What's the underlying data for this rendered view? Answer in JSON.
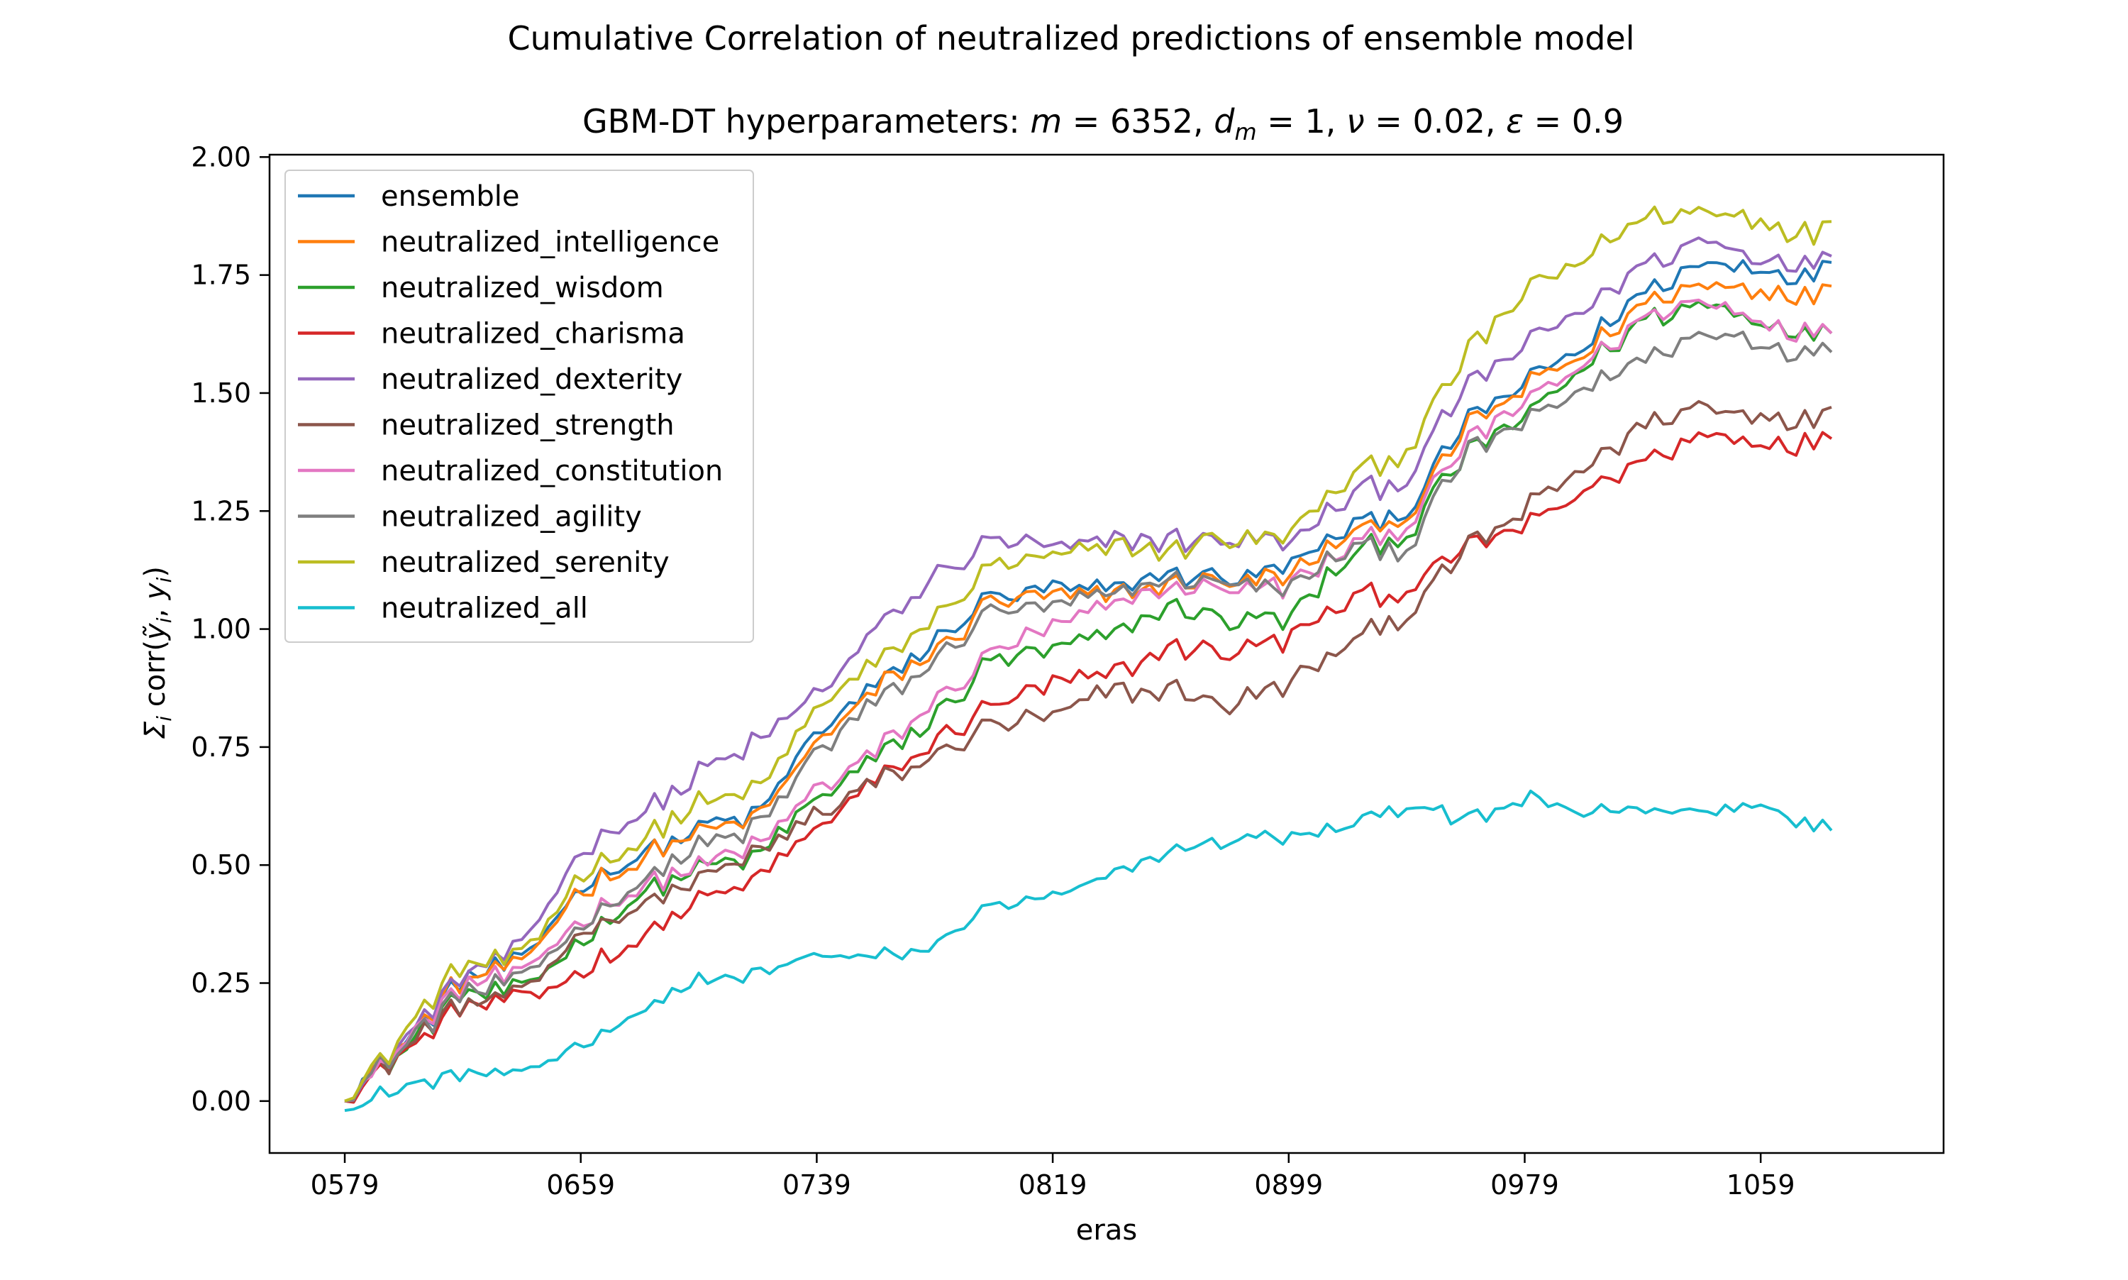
{
  "figure": {
    "suptitle": "Cumulative Correlation of neutralized predictions of ensemble model"
  },
  "chart_data": {
    "type": "line",
    "title_parts": {
      "prefix": "GBM-DT hyperparameters: ",
      "m_symbol": "m",
      "m_value": " = 6352, ",
      "dm_symbol": "d",
      "dm_sub": "m",
      "dm_value": " = 1, ",
      "nu_symbol": "ν",
      "nu_value": " = 0.02, ",
      "eps_symbol": "ε",
      "eps_value": " = 0.9"
    },
    "xlabel": "eras",
    "ylabel_parts": {
      "sigma": "Σ",
      "sigma_sub": "i",
      "corr": " corr(",
      "yhat": "ỹ",
      "yhat_sub": "i",
      "comma": ", ",
      "y": "y",
      "y_sub": "i",
      "close": ")"
    },
    "x_range": [
      579,
      1085
    ],
    "xlim": [
      553.5,
      1121
    ],
    "ylim": [
      -0.11,
      2.005
    ],
    "x_ticks": [
      {
        "value": 579,
        "label": "0579"
      },
      {
        "value": 659,
        "label": "0659"
      },
      {
        "value": 739,
        "label": "0739"
      },
      {
        "value": 819,
        "label": "0819"
      },
      {
        "value": 899,
        "label": "0899"
      },
      {
        "value": 979,
        "label": "0979"
      },
      {
        "value": 1059,
        "label": "1059"
      }
    ],
    "y_ticks": [
      {
        "value": 0.0,
        "label": "0.00"
      },
      {
        "value": 0.25,
        "label": "0.25"
      },
      {
        "value": 0.5,
        "label": "0.50"
      },
      {
        "value": 0.75,
        "label": "0.75"
      },
      {
        "value": 1.0,
        "label": "1.00"
      },
      {
        "value": 1.25,
        "label": "1.25"
      },
      {
        "value": 1.5,
        "label": "1.50"
      },
      {
        "value": 1.75,
        "label": "1.75"
      },
      {
        "value": 2.0,
        "label": "2.00"
      }
    ],
    "grid": false,
    "legend_position": "upper-left",
    "series": [
      {
        "name": "ensemble",
        "color": "#1f77b4",
        "points": [
          [
            579,
            0.0
          ],
          [
            599,
            0.12
          ],
          [
            619,
            0.26
          ],
          [
            639,
            0.29
          ],
          [
            659,
            0.46
          ],
          [
            679,
            0.52
          ],
          [
            699,
            0.58
          ],
          [
            719,
            0.61
          ],
          [
            739,
            0.78
          ],
          [
            759,
            0.88
          ],
          [
            779,
            0.97
          ],
          [
            799,
            1.07
          ],
          [
            819,
            1.08
          ],
          [
            839,
            1.08
          ],
          [
            859,
            1.12
          ],
          [
            879,
            1.11
          ],
          [
            899,
            1.13
          ],
          [
            919,
            1.22
          ],
          [
            939,
            1.25
          ],
          [
            959,
            1.44
          ],
          [
            979,
            1.52
          ],
          [
            999,
            1.6
          ],
          [
            1019,
            1.72
          ],
          [
            1039,
            1.77
          ],
          [
            1059,
            1.77
          ],
          [
            1079,
            1.75
          ],
          [
            1085,
            1.79
          ]
        ]
      },
      {
        "name": "neutralized_intelligence",
        "color": "#ff7f0e",
        "points": [
          [
            579,
            0.0
          ],
          [
            599,
            0.12
          ],
          [
            619,
            0.26
          ],
          [
            639,
            0.28
          ],
          [
            659,
            0.45
          ],
          [
            679,
            0.51
          ],
          [
            699,
            0.57
          ],
          [
            719,
            0.6
          ],
          [
            739,
            0.76
          ],
          [
            759,
            0.87
          ],
          [
            779,
            0.95
          ],
          [
            799,
            1.06
          ],
          [
            819,
            1.07
          ],
          [
            839,
            1.07
          ],
          [
            859,
            1.1
          ],
          [
            879,
            1.1
          ],
          [
            899,
            1.11
          ],
          [
            919,
            1.2
          ],
          [
            939,
            1.24
          ],
          [
            959,
            1.43
          ],
          [
            979,
            1.51
          ],
          [
            999,
            1.58
          ],
          [
            1019,
            1.69
          ],
          [
            1039,
            1.73
          ],
          [
            1059,
            1.72
          ],
          [
            1079,
            1.7
          ],
          [
            1085,
            1.74
          ]
        ]
      },
      {
        "name": "neutralized_wisdom",
        "color": "#2ca02c",
        "points": [
          [
            579,
            0.0
          ],
          [
            599,
            0.11
          ],
          [
            619,
            0.23
          ],
          [
            639,
            0.23
          ],
          [
            659,
            0.34
          ],
          [
            679,
            0.44
          ],
          [
            699,
            0.49
          ],
          [
            719,
            0.52
          ],
          [
            739,
            0.64
          ],
          [
            759,
            0.72
          ],
          [
            779,
            0.81
          ],
          [
            799,
            0.94
          ],
          [
            819,
            0.95
          ],
          [
            839,
            0.99
          ],
          [
            859,
            1.05
          ],
          [
            879,
            1.02
          ],
          [
            899,
            1.02
          ],
          [
            919,
            1.15
          ],
          [
            939,
            1.2
          ],
          [
            959,
            1.37
          ],
          [
            979,
            1.45
          ],
          [
            999,
            1.55
          ],
          [
            1019,
            1.65
          ],
          [
            1039,
            1.69
          ],
          [
            1059,
            1.65
          ],
          [
            1079,
            1.62
          ],
          [
            1085,
            1.63
          ]
        ]
      },
      {
        "name": "neutralized_charisma",
        "color": "#d62728",
        "points": [
          [
            579,
            0.0
          ],
          [
            599,
            0.1
          ],
          [
            619,
            0.2
          ],
          [
            639,
            0.21
          ],
          [
            659,
            0.27
          ],
          [
            679,
            0.35
          ],
          [
            699,
            0.42
          ],
          [
            719,
            0.47
          ],
          [
            739,
            0.58
          ],
          [
            759,
            0.68
          ],
          [
            779,
            0.76
          ],
          [
            799,
            0.84
          ],
          [
            819,
            0.88
          ],
          [
            839,
            0.9
          ],
          [
            859,
            0.96
          ],
          [
            879,
            0.95
          ],
          [
            899,
            0.98
          ],
          [
            919,
            1.06
          ],
          [
            939,
            1.08
          ],
          [
            959,
            1.17
          ],
          [
            979,
            1.22
          ],
          [
            999,
            1.29
          ],
          [
            1019,
            1.36
          ],
          [
            1039,
            1.41
          ],
          [
            1059,
            1.4
          ],
          [
            1079,
            1.39
          ],
          [
            1085,
            1.41
          ]
        ]
      },
      {
        "name": "neutralized_dexterity",
        "color": "#9467bd",
        "points": [
          [
            579,
            0.0
          ],
          [
            599,
            0.13
          ],
          [
            619,
            0.27
          ],
          [
            639,
            0.32
          ],
          [
            659,
            0.53
          ],
          [
            679,
            0.61
          ],
          [
            699,
            0.69
          ],
          [
            719,
            0.76
          ],
          [
            739,
            0.86
          ],
          [
            759,
            1.0
          ],
          [
            779,
            1.11
          ],
          [
            799,
            1.19
          ],
          [
            819,
            1.17
          ],
          [
            839,
            1.19
          ],
          [
            859,
            1.19
          ],
          [
            879,
            1.19
          ],
          [
            899,
            1.18
          ],
          [
            919,
            1.28
          ],
          [
            939,
            1.32
          ],
          [
            959,
            1.51
          ],
          [
            979,
            1.6
          ],
          [
            999,
            1.68
          ],
          [
            1019,
            1.77
          ],
          [
            1039,
            1.82
          ],
          [
            1059,
            1.79
          ],
          [
            1079,
            1.77
          ],
          [
            1085,
            1.8
          ]
        ]
      },
      {
        "name": "neutralized_strength",
        "color": "#8c564b",
        "points": [
          [
            579,
            0.0
          ],
          [
            599,
            0.11
          ],
          [
            619,
            0.21
          ],
          [
            639,
            0.22
          ],
          [
            659,
            0.36
          ],
          [
            679,
            0.41
          ],
          [
            699,
            0.47
          ],
          [
            719,
            0.52
          ],
          [
            739,
            0.61
          ],
          [
            759,
            0.67
          ],
          [
            779,
            0.73
          ],
          [
            799,
            0.8
          ],
          [
            819,
            0.81
          ],
          [
            839,
            0.87
          ],
          [
            859,
            0.87
          ],
          [
            879,
            0.84
          ],
          [
            899,
            0.88
          ],
          [
            919,
            0.97
          ],
          [
            939,
            1.03
          ],
          [
            959,
            1.17
          ],
          [
            979,
            1.25
          ],
          [
            999,
            1.34
          ],
          [
            1019,
            1.43
          ],
          [
            1039,
            1.47
          ],
          [
            1059,
            1.46
          ],
          [
            1079,
            1.43
          ],
          [
            1085,
            1.49
          ]
        ]
      },
      {
        "name": "neutralized_constitution",
        "color": "#e377c2",
        "points": [
          [
            579,
            0.0
          ],
          [
            599,
            0.12
          ],
          [
            619,
            0.25
          ],
          [
            639,
            0.26
          ],
          [
            659,
            0.39
          ],
          [
            679,
            0.45
          ],
          [
            699,
            0.5
          ],
          [
            719,
            0.54
          ],
          [
            739,
            0.66
          ],
          [
            759,
            0.74
          ],
          [
            779,
            0.84
          ],
          [
            799,
            0.95
          ],
          [
            819,
            1.0
          ],
          [
            839,
            1.05
          ],
          [
            859,
            1.09
          ],
          [
            879,
            1.09
          ],
          [
            899,
            1.09
          ],
          [
            919,
            1.17
          ],
          [
            939,
            1.22
          ],
          [
            959,
            1.39
          ],
          [
            979,
            1.48
          ],
          [
            999,
            1.56
          ],
          [
            1019,
            1.66
          ],
          [
            1039,
            1.7
          ],
          [
            1059,
            1.66
          ],
          [
            1079,
            1.62
          ],
          [
            1085,
            1.63
          ]
        ]
      },
      {
        "name": "neutralized_agility",
        "color": "#7f7f7f",
        "points": [
          [
            579,
            0.0
          ],
          [
            599,
            0.12
          ],
          [
            619,
            0.23
          ],
          [
            639,
            0.25
          ],
          [
            659,
            0.38
          ],
          [
            679,
            0.46
          ],
          [
            699,
            0.54
          ],
          [
            719,
            0.58
          ],
          [
            739,
            0.74
          ],
          [
            759,
            0.84
          ],
          [
            779,
            0.93
          ],
          [
            799,
            1.04
          ],
          [
            819,
            1.05
          ],
          [
            839,
            1.07
          ],
          [
            859,
            1.11
          ],
          [
            879,
            1.1
          ],
          [
            899,
            1.08
          ],
          [
            919,
            1.17
          ],
          [
            939,
            1.17
          ],
          [
            959,
            1.37
          ],
          [
            979,
            1.44
          ],
          [
            999,
            1.51
          ],
          [
            1019,
            1.57
          ],
          [
            1039,
            1.63
          ],
          [
            1059,
            1.61
          ],
          [
            1079,
            1.58
          ],
          [
            1085,
            1.59
          ]
        ]
      },
      {
        "name": "neutralized_serenity",
        "color": "#bcbd22",
        "points": [
          [
            579,
            0.0
          ],
          [
            599,
            0.14
          ],
          [
            619,
            0.29
          ],
          [
            639,
            0.3
          ],
          [
            659,
            0.48
          ],
          [
            679,
            0.55
          ],
          [
            699,
            0.63
          ],
          [
            719,
            0.66
          ],
          [
            739,
            0.83
          ],
          [
            759,
            0.93
          ],
          [
            779,
            1.02
          ],
          [
            799,
            1.14
          ],
          [
            819,
            1.15
          ],
          [
            839,
            1.17
          ],
          [
            859,
            1.17
          ],
          [
            879,
            1.19
          ],
          [
            899,
            1.2
          ],
          [
            919,
            1.32
          ],
          [
            939,
            1.38
          ],
          [
            959,
            1.58
          ],
          [
            979,
            1.71
          ],
          [
            999,
            1.79
          ],
          [
            1019,
            1.87
          ],
          [
            1039,
            1.89
          ],
          [
            1059,
            1.87
          ],
          [
            1079,
            1.83
          ],
          [
            1085,
            1.88
          ]
        ]
      },
      {
        "name": "neutralized_all",
        "color": "#17becf",
        "points": [
          [
            579,
            -0.02
          ],
          [
            599,
            0.03
          ],
          [
            619,
            0.06
          ],
          [
            639,
            0.05
          ],
          [
            659,
            0.12
          ],
          [
            679,
            0.19
          ],
          [
            699,
            0.25
          ],
          [
            719,
            0.27
          ],
          [
            739,
            0.31
          ],
          [
            759,
            0.3
          ],
          [
            779,
            0.33
          ],
          [
            799,
            0.42
          ],
          [
            819,
            0.43
          ],
          [
            839,
            0.48
          ],
          [
            859,
            0.53
          ],
          [
            879,
            0.55
          ],
          [
            899,
            0.56
          ],
          [
            919,
            0.58
          ],
          [
            939,
            0.63
          ],
          [
            959,
            0.59
          ],
          [
            979,
            0.64
          ],
          [
            999,
            0.61
          ],
          [
            1019,
            0.62
          ],
          [
            1039,
            0.61
          ],
          [
            1059,
            0.63
          ],
          [
            1079,
            0.58
          ],
          [
            1085,
            0.57
          ]
        ]
      }
    ]
  }
}
